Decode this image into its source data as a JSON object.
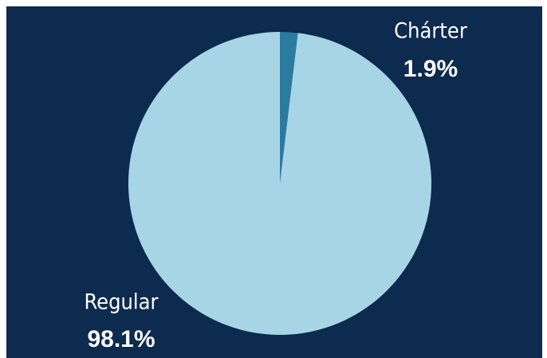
{
  "chart_data": {
    "type": "pie",
    "categories": [
      "Chárter",
      "Regular"
    ],
    "values": [
      1.9,
      98.1
    ],
    "value_labels": [
      "1.9%",
      "98.1%"
    ],
    "colors": [
      "#2b7ba0",
      "#a8d5e5"
    ]
  }
}
